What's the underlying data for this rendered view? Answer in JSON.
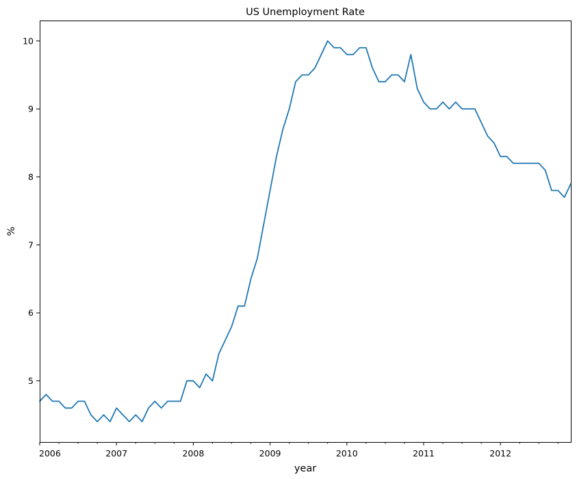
{
  "chart_data": {
    "type": "line",
    "title": "US Unemployment Rate",
    "xlabel": "year",
    "ylabel": "%",
    "x_start": "2006-01",
    "frequency": "monthly",
    "xlim": [
      "2006-01",
      "2012-12"
    ],
    "ylim": [
      4.1,
      10.3
    ],
    "x_ticks": [
      "2006",
      "2007",
      "2008",
      "2009",
      "2010",
      "2011",
      "2012"
    ],
    "y_ticks": [
      5,
      6,
      7,
      8,
      9,
      10
    ],
    "grid": false,
    "legend": "none",
    "color": "#1f77b4",
    "series": [
      {
        "values": [
          4.7,
          4.8,
          4.7,
          4.7,
          4.6,
          4.6,
          4.7,
          4.7,
          4.5,
          4.4,
          4.5,
          4.4,
          4.6,
          4.5,
          4.4,
          4.5,
          4.4,
          4.6,
          4.7,
          4.6,
          4.7,
          4.7,
          4.7,
          5.0,
          5.0,
          4.9,
          5.1,
          5.0,
          5.4,
          5.6,
          5.8,
          6.1,
          6.1,
          6.5,
          6.8,
          7.3,
          7.8,
          8.3,
          8.7,
          9.0,
          9.4,
          9.5,
          9.5,
          9.6,
          9.8,
          10.0,
          9.9,
          9.9,
          9.8,
          9.8,
          9.9,
          9.9,
          9.6,
          9.4,
          9.4,
          9.5,
          9.5,
          9.4,
          9.8,
          9.3,
          9.1,
          9.0,
          9.0,
          9.1,
          9.0,
          9.1,
          9.0,
          9.0,
          9.0,
          8.8,
          8.6,
          8.5,
          8.3,
          8.3,
          8.2,
          8.2,
          8.2,
          8.2,
          8.2,
          8.1,
          7.8,
          7.8,
          7.7,
          7.9
        ]
      }
    ]
  }
}
